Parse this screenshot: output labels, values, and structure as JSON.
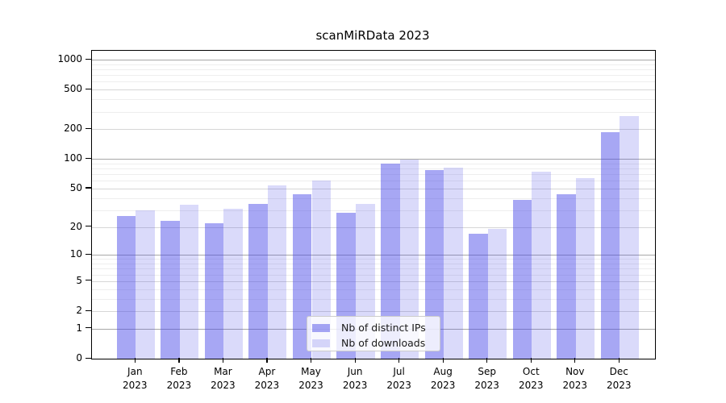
{
  "title": "scanMiRData 2023",
  "chart_data": {
    "type": "bar",
    "title": "scanMiRData 2023",
    "categories": [
      "Jan",
      "Feb",
      "Mar",
      "Apr",
      "May",
      "Jun",
      "Jul",
      "Aug",
      "Sep",
      "Oct",
      "Nov",
      "Dec"
    ],
    "category_year": "2023",
    "series": [
      {
        "name": "Nb of distinct IPs",
        "color": "rgba(72,72,232,0.48)",
        "values": [
          26,
          23,
          22,
          35,
          44,
          28,
          89,
          77,
          17,
          38,
          44,
          185
        ]
      },
      {
        "name": "Nb of downloads",
        "color": "rgba(72,72,232,0.20)",
        "values": [
          30,
          34,
          31,
          54,
          60,
          35,
          98,
          81,
          19,
          74,
          64,
          272
        ]
      }
    ],
    "y_axis": {
      "scale": "log10(value+1)",
      "tick_labels": [
        0,
        1,
        2,
        5,
        10,
        20,
        50,
        100,
        200,
        500,
        1000
      ],
      "range": [
        0,
        1230
      ],
      "gridlines_major": [
        1,
        10,
        100,
        1000
      ],
      "gridlines_mid": [
        2,
        5,
        20,
        50,
        200,
        500
      ],
      "gridlines_minor": [
        3,
        4,
        6,
        7,
        8,
        9,
        30,
        40,
        60,
        70,
        80,
        90,
        300,
        400,
        600,
        700,
        800,
        900
      ]
    },
    "legend": {
      "position": "bottom-center",
      "items": [
        "Nb of distinct IPs",
        "Nb of downloads"
      ]
    },
    "grid": true
  },
  "colors": {
    "bar_distinct_ips": "rgba(72,72,232,0.48)",
    "bar_downloads": "rgba(72,72,232,0.20)",
    "axis": "#000000",
    "grid_major": "#a8a8a8",
    "grid_mid": "#d6d6d6",
    "grid_minor": "#eeeeee",
    "background": "#ffffff"
  }
}
